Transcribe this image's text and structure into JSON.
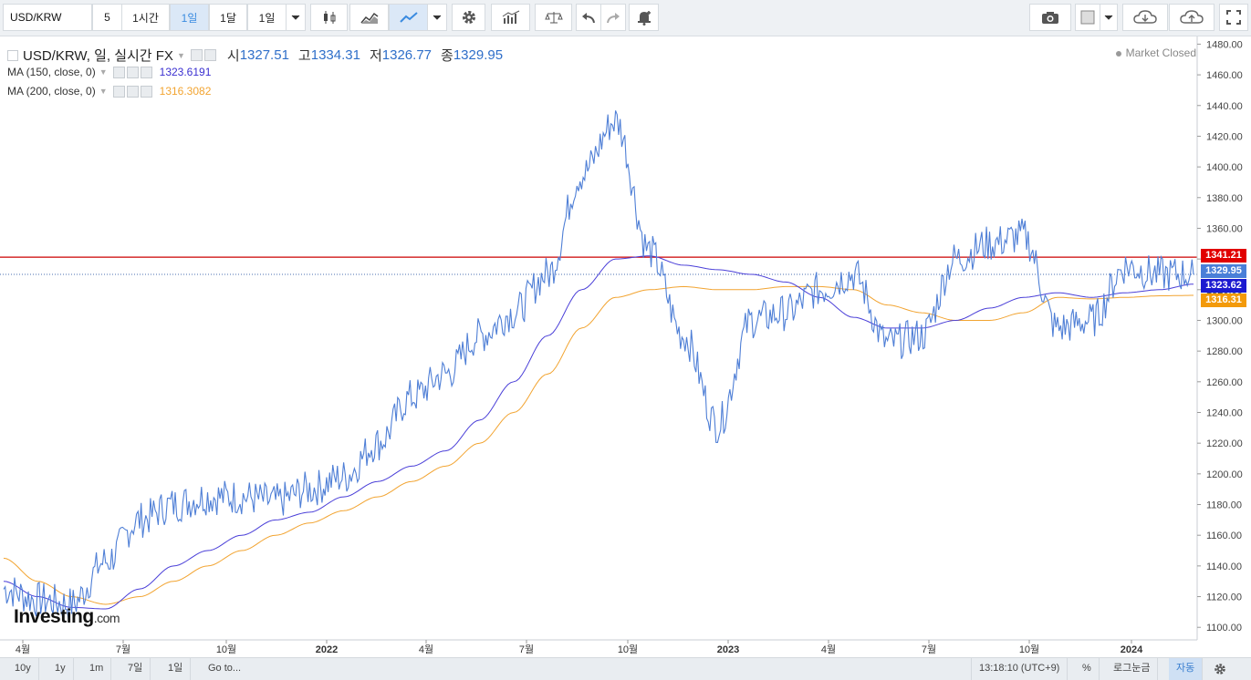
{
  "toolbar": {
    "symbol": "USD/KRW",
    "intervals": [
      "5",
      "1시간",
      "1일",
      "1달",
      "1일"
    ],
    "active_interval_index": 2,
    "icons": [
      "candlestick-icon",
      "area-chart-icon",
      "line-chart-icon",
      "dropdown-arrow-icon",
      "settings-icon",
      "indicators-icon",
      "compare-icon",
      "undo-icon",
      "redo-icon",
      "alert-icon",
      "camera-icon",
      "color-icon",
      "cloud-download-icon",
      "cloud-upload-icon",
      "fullscreen-icon"
    ]
  },
  "legend": {
    "title": "USD/KRW, 일, 실시간 FX",
    "open_label": "시",
    "open": "1327.51",
    "high_label": "고",
    "high": "1334.31",
    "low_label": "저",
    "low": "1326.77",
    "close_label": "종",
    "close": "1329.95",
    "ma150_label": "MA (150, close, 0)",
    "ma150_value": "1323.6191",
    "ma200_label": "MA (200, close, 0)",
    "ma200_value": "1316.3082",
    "status": "Market Closed"
  },
  "colors": {
    "price": "#4f7fd6",
    "ma150": "#4a3fd8",
    "ma200": "#f2a431",
    "hline": "#cc0000",
    "tag_price": "#4a7fd8",
    "tag_ma150": "#1c1ad0",
    "tag_ma200": "#f39a0a",
    "tag_hline": "#e10000"
  },
  "price_tags": {
    "hline": "1341.21",
    "last": "1329.95",
    "ma150": "1323.62",
    "ma200": "1316.31"
  },
  "axis": {
    "y_ticks": [
      "1480.00",
      "1460.00",
      "1440.00",
      "1420.00",
      "1400.00",
      "1380.00",
      "1360.00",
      "1340.00",
      "1320.00",
      "1300.00",
      "1280.00",
      "1260.00",
      "1240.00",
      "1220.00",
      "1200.00",
      "1180.00",
      "1160.00",
      "1140.00",
      "1120.00",
      "1100.00"
    ],
    "x_ticks": [
      "4월",
      "7월",
      "10월",
      "2022",
      "4월",
      "7월",
      "10월",
      "2023",
      "4월",
      "7월",
      "10월",
      "2024"
    ]
  },
  "chart_data": {
    "type": "line",
    "ylim": [
      1090,
      1485
    ],
    "hline": 1341.21,
    "x": [
      "2021-04",
      "2021-05",
      "2021-06",
      "2021-07",
      "2021-08",
      "2021-09",
      "2021-10",
      "2021-11",
      "2021-12",
      "2022-01",
      "2022-02",
      "2022-03",
      "2022-04",
      "2022-05",
      "2022-06",
      "2022-07",
      "2022-08",
      "2022-09",
      "2022-10",
      "2022-11",
      "2022-12",
      "2023-01",
      "2023-02",
      "2023-03",
      "2023-04",
      "2023-05",
      "2023-06",
      "2023-07",
      "2023-08",
      "2023-09",
      "2023-10",
      "2023-11",
      "2023-12",
      "2024-01",
      "2024-02",
      "2024-03"
    ],
    "series": [
      {
        "name": "USD/KRW",
        "values": [
          1125,
          1118,
          1115,
          1143,
          1170,
          1180,
          1185,
          1185,
          1182,
          1190,
          1198,
          1220,
          1250,
          1265,
          1290,
          1305,
          1330,
          1395,
          1430,
          1345,
          1290,
          1232,
          1300,
          1305,
          1320,
          1330,
          1285,
          1290,
          1340,
          1350,
          1355,
          1295,
          1300,
          1335,
          1330,
          1329.95
        ]
      },
      {
        "name": "MA (150, close, 0)",
        "values": [
          1130,
          1120,
          1113,
          1112,
          1125,
          1140,
          1150,
          1160,
          1170,
          1175,
          1185,
          1195,
          1205,
          1215,
          1235,
          1260,
          1290,
          1320,
          1340,
          1342,
          1336,
          1333,
          1330,
          1325,
          1315,
          1302,
          1295,
          1295,
          1300,
          1308,
          1315,
          1318,
          1315,
          1318,
          1320,
          1323.62
        ]
      },
      {
        "name": "MA (200, close, 0)",
        "values": [
          1145,
          1130,
          1120,
          1115,
          1120,
          1130,
          1140,
          1150,
          1160,
          1168,
          1176,
          1185,
          1195,
          1205,
          1220,
          1240,
          1265,
          1295,
          1315,
          1320,
          1322,
          1320,
          1320,
          1322,
          1322,
          1320,
          1310,
          1305,
          1300,
          1300,
          1305,
          1315,
          1314,
          1315,
          1316,
          1316.31
        ]
      }
    ]
  },
  "bottom": {
    "ranges": [
      "10y",
      "1y",
      "1m",
      "7일",
      "1일",
      "Go to..."
    ],
    "time": "13:18:10 (UTC+9)",
    "percent": "%",
    "log": "로그눈금",
    "auto": "자동"
  }
}
